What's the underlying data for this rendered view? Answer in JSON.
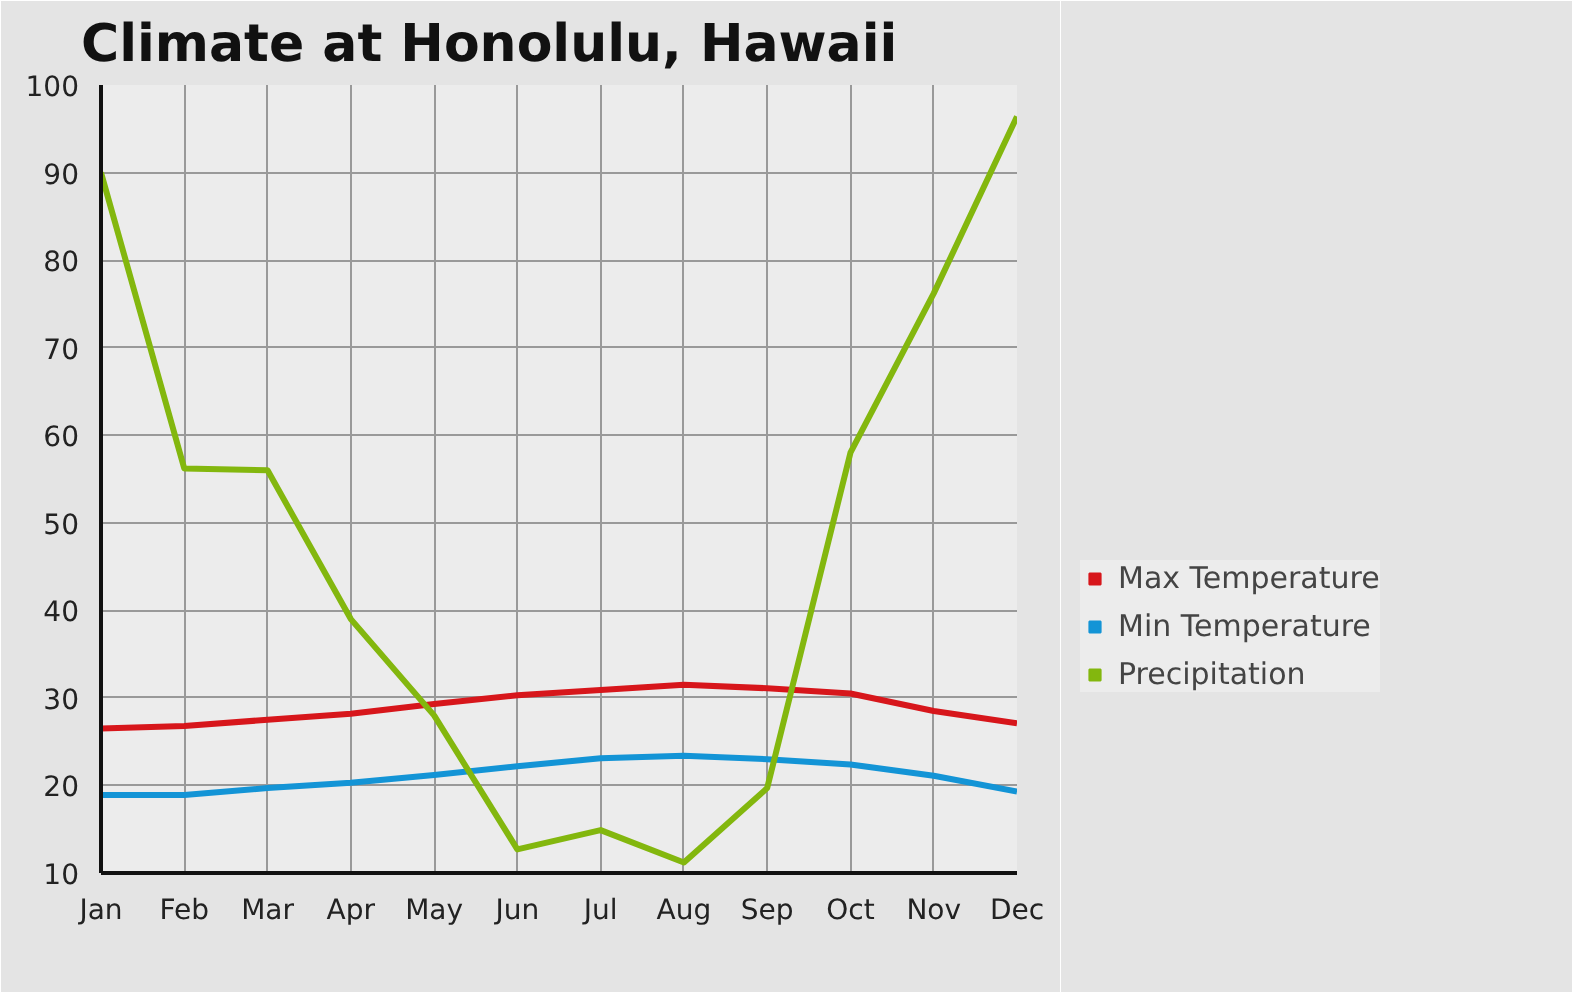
{
  "chart_data": {
    "type": "line",
    "title": "Climate at Honolulu, Hawaii",
    "categories": [
      "Jan",
      "Feb",
      "Mar",
      "Apr",
      "May",
      "Jun",
      "Jul",
      "Aug",
      "Sep",
      "Oct",
      "Nov",
      "Dec"
    ],
    "series": [
      {
        "name": "Max Temperature",
        "color": "#d7161b",
        "values": [
          26.5,
          26.8,
          27.5,
          28.2,
          29.3,
          30.3,
          30.9,
          31.5,
          31.1,
          30.5,
          28.5,
          27.1
        ]
      },
      {
        "name": "Min Temperature",
        "color": "#1394d6",
        "values": [
          18.9,
          18.9,
          19.7,
          20.3,
          21.2,
          22.2,
          23.1,
          23.4,
          23.0,
          22.4,
          21.1,
          19.3
        ]
      },
      {
        "name": "Precipitation",
        "color": "#83b70e",
        "values": [
          90,
          56.2,
          56,
          39,
          28,
          12.7,
          14.9,
          11.2,
          19.7,
          58,
          76.2,
          96.4
        ]
      }
    ],
    "ylim": [
      10,
      100
    ],
    "yticks": [
      10,
      20,
      30,
      40,
      50,
      60,
      70,
      80,
      90,
      100
    ],
    "grid": true,
    "legend": "right",
    "line_style": "solid"
  }
}
